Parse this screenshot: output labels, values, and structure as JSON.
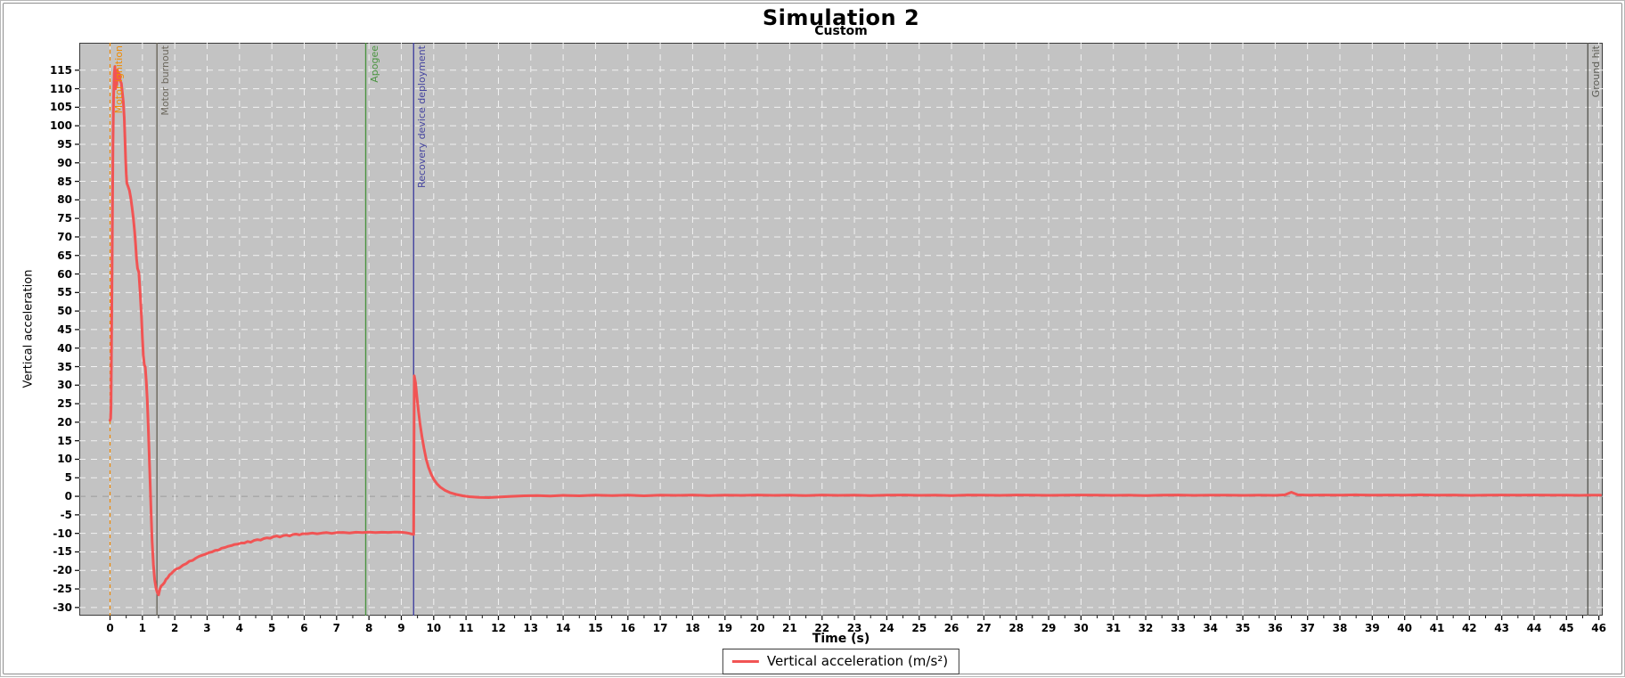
{
  "header": {
    "title": "Simulation 2",
    "subtitle": "Custom"
  },
  "chart_data": {
    "type": "line",
    "title": "Simulation 2",
    "subtitle": "Custom",
    "xlabel": "Time (s)",
    "ylabel": "Vertical acceleration",
    "xlim": [
      -0.95,
      46.12
    ],
    "ylim": [
      -32.2,
      122.4
    ],
    "x_ticks": {
      "min": 0,
      "max": 46,
      "step": 1
    },
    "y_ticks": {
      "min": -30,
      "max": 115,
      "step": 5
    },
    "grid": true,
    "plot_bg_color": "#c3c3c3",
    "grid_color": "#f2f2f2",
    "zero_line_color": "#9b9b9b",
    "legend": {
      "position": "bottom",
      "label": "Vertical acceleration (m/s²)"
    },
    "events": [
      {
        "label": "Motor ignition",
        "time": 0,
        "color": "#f08a00",
        "style": "dashed"
      },
      {
        "label": "Motor burnout",
        "time": 1.45,
        "color": "#6b675c",
        "style": "solid"
      },
      {
        "label": "Apogee",
        "time": 7.9,
        "color": "#4a9440",
        "style": "solid"
      },
      {
        "label": "Recovery device deployment",
        "time": 9.38,
        "color": "#44449f",
        "style": "solid"
      },
      {
        "label": "Ground hit",
        "time": 45.66,
        "color": "#5c5c55",
        "style": "solid"
      }
    ],
    "series": [
      {
        "name": "Vertical acceleration (m/s²)",
        "color": "#f15454",
        "points": [
          [
            0,
            20.5
          ],
          [
            0.02,
            21
          ],
          [
            0.03,
            24
          ],
          [
            0.05,
            45
          ],
          [
            0.07,
            72
          ],
          [
            0.09,
            95
          ],
          [
            0.11,
            108
          ],
          [
            0.13,
            114
          ],
          [
            0.15,
            116
          ],
          [
            0.17,
            110
          ],
          [
            0.19,
            114.5
          ],
          [
            0.21,
            111
          ],
          [
            0.23,
            115
          ],
          [
            0.26,
            112.5
          ],
          [
            0.29,
            114
          ],
          [
            0.32,
            112
          ],
          [
            0.35,
            111.5
          ],
          [
            0.38,
            109
          ],
          [
            0.41,
            106.5
          ],
          [
            0.44,
            102
          ],
          [
            0.46,
            97
          ],
          [
            0.48,
            91
          ],
          [
            0.5,
            87
          ],
          [
            0.52,
            84.5
          ],
          [
            0.56,
            83.5
          ],
          [
            0.6,
            82.5
          ],
          [
            0.64,
            80.5
          ],
          [
            0.68,
            78
          ],
          [
            0.72,
            75
          ],
          [
            0.76,
            71.5
          ],
          [
            0.79,
            68
          ],
          [
            0.82,
            64
          ],
          [
            0.85,
            61.5
          ],
          [
            0.89,
            60.5
          ],
          [
            0.93,
            55
          ],
          [
            0.97,
            48.5
          ],
          [
            1,
            43
          ],
          [
            1.03,
            38
          ],
          [
            1.06,
            35.5
          ],
          [
            1.09,
            34.8
          ],
          [
            1.12,
            31
          ],
          [
            1.15,
            26
          ],
          [
            1.18,
            19
          ],
          [
            1.21,
            11
          ],
          [
            1.24,
            3
          ],
          [
            1.27,
            -5
          ],
          [
            1.3,
            -12
          ],
          [
            1.34,
            -18.5
          ],
          [
            1.38,
            -22.5
          ],
          [
            1.42,
            -24.8
          ],
          [
            1.46,
            -26
          ],
          [
            1.5,
            -26.6
          ],
          [
            1.54,
            -25
          ],
          [
            1.58,
            -24.2
          ],
          [
            1.63,
            -23.8
          ],
          [
            1.68,
            -23.3
          ],
          [
            1.73,
            -22.4
          ],
          [
            1.78,
            -22
          ],
          [
            1.84,
            -21.2
          ],
          [
            1.9,
            -20.8
          ],
          [
            1.96,
            -20.2
          ],
          [
            2.05,
            -19.6
          ],
          [
            2.15,
            -19.3
          ],
          [
            2.25,
            -18.6
          ],
          [
            2.35,
            -18.2
          ],
          [
            2.45,
            -17.5
          ],
          [
            2.55,
            -17.3
          ],
          [
            2.65,
            -16.7
          ],
          [
            2.75,
            -16.2
          ],
          [
            2.85,
            -15.9
          ],
          [
            2.95,
            -15.6
          ],
          [
            3.05,
            -15.2
          ],
          [
            3.15,
            -15
          ],
          [
            3.25,
            -14.6
          ],
          [
            3.35,
            -14.5
          ],
          [
            3.45,
            -14
          ],
          [
            3.55,
            -13.8
          ],
          [
            3.65,
            -13.5
          ],
          [
            3.75,
            -13.3
          ],
          [
            3.85,
            -13
          ],
          [
            3.95,
            -12.9
          ],
          [
            4.05,
            -12.6
          ],
          [
            4.15,
            -12.6
          ],
          [
            4.25,
            -12.2
          ],
          [
            4.35,
            -12.4
          ],
          [
            4.45,
            -11.9
          ],
          [
            4.55,
            -11.7
          ],
          [
            4.65,
            -11.8
          ],
          [
            4.75,
            -11.4
          ],
          [
            4.85,
            -11.2
          ],
          [
            4.95,
            -11.3
          ],
          [
            5.05,
            -10.9
          ],
          [
            5.15,
            -10.7
          ],
          [
            5.25,
            -11
          ],
          [
            5.35,
            -10.6
          ],
          [
            5.45,
            -10.5
          ],
          [
            5.55,
            -10.7
          ],
          [
            5.65,
            -10.3
          ],
          [
            5.75,
            -10.2
          ],
          [
            5.85,
            -10.4
          ],
          [
            5.95,
            -10.1
          ],
          [
            6.1,
            -10.1
          ],
          [
            6.25,
            -9.9
          ],
          [
            6.4,
            -10.1
          ],
          [
            6.55,
            -9.9
          ],
          [
            6.7,
            -9.8
          ],
          [
            6.85,
            -10
          ],
          [
            7,
            -9.8
          ],
          [
            7.2,
            -9.75
          ],
          [
            7.4,
            -9.9
          ],
          [
            7.6,
            -9.7
          ],
          [
            7.8,
            -9.8
          ],
          [
            8,
            -9.65
          ],
          [
            8.2,
            -9.8
          ],
          [
            8.4,
            -9.7
          ],
          [
            8.6,
            -9.75
          ],
          [
            8.8,
            -9.65
          ],
          [
            9,
            -9.7
          ],
          [
            9.15,
            -9.85
          ],
          [
            9.25,
            -10
          ],
          [
            9.33,
            -10.2
          ],
          [
            9.38,
            -10.3
          ],
          [
            9.4,
            32.5
          ],
          [
            9.44,
            30.5
          ],
          [
            9.48,
            27
          ],
          [
            9.53,
            23
          ],
          [
            9.58,
            19.5
          ],
          [
            9.64,
            16
          ],
          [
            9.7,
            13
          ],
          [
            9.77,
            10
          ],
          [
            9.84,
            7.8
          ],
          [
            9.92,
            6
          ],
          [
            10,
            4.6
          ],
          [
            10.1,
            3.4
          ],
          [
            10.2,
            2.5
          ],
          [
            10.35,
            1.6
          ],
          [
            10.5,
            1
          ],
          [
            10.7,
            0.5
          ],
          [
            10.9,
            0.15
          ],
          [
            11.1,
            -0.1
          ],
          [
            11.4,
            -0.3
          ],
          [
            11.7,
            -0.35
          ],
          [
            12,
            -0.2
          ],
          [
            12.4,
            0
          ],
          [
            12.8,
            0.15
          ],
          [
            13.2,
            0.2
          ],
          [
            13.6,
            0.1
          ],
          [
            14,
            0.25
          ],
          [
            14.5,
            0.15
          ],
          [
            15,
            0.3
          ],
          [
            15.5,
            0.2
          ],
          [
            16,
            0.3
          ],
          [
            16.5,
            0.15
          ],
          [
            17,
            0.3
          ],
          [
            17.5,
            0.25
          ],
          [
            18,
            0.35
          ],
          [
            18.5,
            0.2
          ],
          [
            19,
            0.3
          ],
          [
            19.5,
            0.25
          ],
          [
            20,
            0.35
          ],
          [
            20.5,
            0.25
          ],
          [
            21,
            0.3
          ],
          [
            21.5,
            0.2
          ],
          [
            22,
            0.35
          ],
          [
            22.5,
            0.25
          ],
          [
            23,
            0.3
          ],
          [
            23.5,
            0.2
          ],
          [
            24,
            0.3
          ],
          [
            24.5,
            0.35
          ],
          [
            25,
            0.25
          ],
          [
            25.5,
            0.3
          ],
          [
            26,
            0.2
          ],
          [
            26.5,
            0.35
          ],
          [
            27,
            0.3
          ],
          [
            27.5,
            0.25
          ],
          [
            28,
            0.35
          ],
          [
            28.5,
            0.3
          ],
          [
            29,
            0.25
          ],
          [
            29.5,
            0.3
          ],
          [
            30,
            0.35
          ],
          [
            30.5,
            0.3
          ],
          [
            31,
            0.25
          ],
          [
            31.5,
            0.3
          ],
          [
            32,
            0.2
          ],
          [
            32.5,
            0.3
          ],
          [
            33,
            0.35
          ],
          [
            33.5,
            0.25
          ],
          [
            34,
            0.3
          ],
          [
            34.5,
            0.3
          ],
          [
            35,
            0.25
          ],
          [
            35.5,
            0.3
          ],
          [
            36,
            0.25
          ],
          [
            36.3,
            0.4
          ],
          [
            36.5,
            1.1
          ],
          [
            36.7,
            0.4
          ],
          [
            37,
            0.3
          ],
          [
            37.5,
            0.35
          ],
          [
            38,
            0.3
          ],
          [
            38.5,
            0.4
          ],
          [
            39,
            0.3
          ],
          [
            39.5,
            0.35
          ],
          [
            40,
            0.3
          ],
          [
            40.5,
            0.4
          ],
          [
            41,
            0.3
          ],
          [
            41.5,
            0.35
          ],
          [
            42,
            0.25
          ],
          [
            42.5,
            0.3
          ],
          [
            43,
            0.35
          ],
          [
            43.5,
            0.3
          ],
          [
            44,
            0.35
          ],
          [
            44.5,
            0.3
          ],
          [
            45,
            0.3
          ],
          [
            45.4,
            0.25
          ],
          [
            45.7,
            0.3
          ],
          [
            46.05,
            0.3
          ]
        ]
      }
    ]
  }
}
